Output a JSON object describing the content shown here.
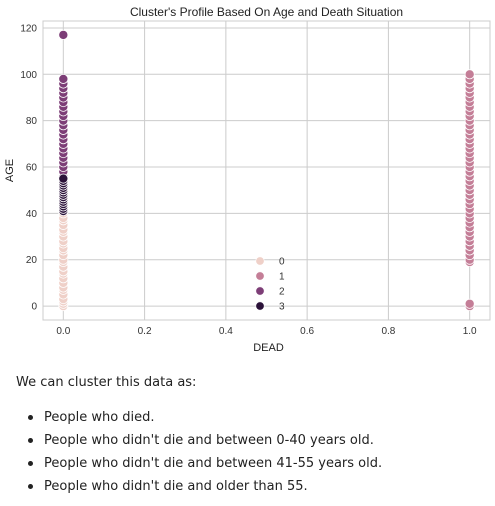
{
  "chart_data": {
    "type": "scatter",
    "title": "Cluster's Profile Based On Age and Death Situation",
    "xlabel": "DEAD",
    "ylabel": "AGE",
    "xlim": [
      -0.05,
      1.05
    ],
    "ylim": [
      -6,
      123
    ],
    "xticks": [
      "0.0",
      "0.2",
      "0.4",
      "0.6",
      "0.8",
      "1.0"
    ],
    "xtick_values": [
      0.0,
      0.2,
      0.4,
      0.6,
      0.8,
      1.0
    ],
    "yticks": [
      "0",
      "20",
      "40",
      "60",
      "80",
      "100",
      "120"
    ],
    "ytick_values": [
      0,
      20,
      40,
      60,
      80,
      100,
      120
    ],
    "grid": true,
    "legend_position": "lower-center",
    "series": [
      {
        "name": "0",
        "color": "#efd0c8",
        "points": [
          [
            0,
            0
          ],
          [
            0,
            1
          ],
          [
            0,
            2
          ],
          [
            0,
            3
          ],
          [
            0,
            5
          ],
          [
            0,
            7
          ],
          [
            0,
            8
          ],
          [
            0,
            10
          ],
          [
            0,
            12
          ],
          [
            0,
            14
          ],
          [
            0,
            15
          ],
          [
            0,
            17
          ],
          [
            0,
            19
          ],
          [
            0,
            20
          ],
          [
            0,
            22
          ],
          [
            0,
            24
          ],
          [
            0,
            25
          ],
          [
            0,
            27
          ],
          [
            0,
            28
          ],
          [
            0,
            30
          ],
          [
            0,
            32
          ],
          [
            0,
            33
          ],
          [
            0,
            35
          ],
          [
            0,
            37
          ],
          [
            0,
            38
          ],
          [
            0,
            40
          ]
        ]
      },
      {
        "name": "1",
        "color": "#c47e97",
        "points": [
          [
            1,
            0
          ],
          [
            1,
            1
          ],
          [
            1,
            19
          ],
          [
            1,
            20
          ],
          [
            1,
            22
          ],
          [
            1,
            24
          ],
          [
            1,
            26
          ],
          [
            1,
            28
          ],
          [
            1,
            30
          ],
          [
            1,
            32
          ],
          [
            1,
            34
          ],
          [
            1,
            36
          ],
          [
            1,
            38
          ],
          [
            1,
            40
          ],
          [
            1,
            42
          ],
          [
            1,
            44
          ],
          [
            1,
            46
          ],
          [
            1,
            48
          ],
          [
            1,
            50
          ],
          [
            1,
            52
          ],
          [
            1,
            54
          ],
          [
            1,
            56
          ],
          [
            1,
            58
          ],
          [
            1,
            60
          ],
          [
            1,
            62
          ],
          [
            1,
            64
          ],
          [
            1,
            66
          ],
          [
            1,
            68
          ],
          [
            1,
            70
          ],
          [
            1,
            72
          ],
          [
            1,
            74
          ],
          [
            1,
            76
          ],
          [
            1,
            78
          ],
          [
            1,
            80
          ],
          [
            1,
            82
          ],
          [
            1,
            84
          ],
          [
            1,
            86
          ],
          [
            1,
            88
          ],
          [
            1,
            90
          ],
          [
            1,
            92
          ],
          [
            1,
            94
          ],
          [
            1,
            96
          ],
          [
            1,
            98
          ],
          [
            1,
            100
          ]
        ]
      },
      {
        "name": "2",
        "color": "#7d3e77",
        "points": [
          [
            0,
            56
          ],
          [
            0,
            58
          ],
          [
            0,
            60
          ],
          [
            0,
            62
          ],
          [
            0,
            64
          ],
          [
            0,
            66
          ],
          [
            0,
            68
          ],
          [
            0,
            70
          ],
          [
            0,
            72
          ],
          [
            0,
            74
          ],
          [
            0,
            76
          ],
          [
            0,
            78
          ],
          [
            0,
            80
          ],
          [
            0,
            82
          ],
          [
            0,
            84
          ],
          [
            0,
            86
          ],
          [
            0,
            88
          ],
          [
            0,
            90
          ],
          [
            0,
            92
          ],
          [
            0,
            94
          ],
          [
            0,
            96
          ],
          [
            0,
            98
          ],
          [
            0,
            117
          ]
        ]
      },
      {
        "name": "3",
        "color": "#2b1239",
        "points": [
          [
            0,
            41
          ],
          [
            0,
            42
          ],
          [
            0,
            43
          ],
          [
            0,
            44
          ],
          [
            0,
            45
          ],
          [
            0,
            46
          ],
          [
            0,
            47
          ],
          [
            0,
            48
          ],
          [
            0,
            49
          ],
          [
            0,
            50
          ],
          [
            0,
            51
          ],
          [
            0,
            52
          ],
          [
            0,
            53
          ],
          [
            0,
            54
          ],
          [
            0,
            55
          ]
        ]
      }
    ]
  },
  "notes": {
    "intro": "We can cluster this data as:",
    "items": [
      "People who died.",
      "People who didn't die and between 0-40 years old.",
      "People who didn't die and between 41-55 years old.",
      "People who didn't die and older than 55."
    ]
  }
}
